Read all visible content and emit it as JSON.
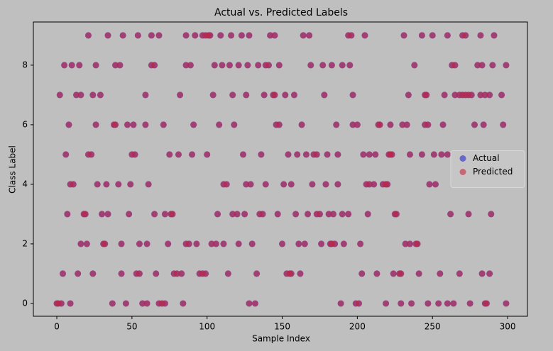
{
  "chart_data": {
    "type": "scatter",
    "title": "Actual vs. Predicted Labels",
    "x_label": "Sample Index",
    "y_label": "Class Label",
    "xlim": [
      -15.6,
      313.2
    ],
    "ylim": [
      -0.43,
      9.45
    ],
    "xticks": [
      0,
      50,
      100,
      150,
      200,
      250,
      300
    ],
    "yticks": [
      0,
      2,
      4,
      6,
      8
    ],
    "legend": "center right",
    "opacity": 0.6,
    "x": [
      21,
      34,
      44,
      54,
      63,
      68,
      86,
      92,
      97,
      99,
      101,
      102,
      109,
      116,
      123,
      128,
      142,
      145,
      164,
      168,
      194,
      196,
      205,
      231,
      243,
      250,
      260,
      270,
      272,
      282,
      291,
      5,
      10,
      15,
      26,
      39,
      42,
      63,
      65,
      86,
      89,
      105,
      110,
      115,
      121,
      127,
      134,
      139,
      141,
      148,
      169,
      177,
      183,
      190,
      195,
      238,
      263,
      265,
      280,
      283,
      290,
      299,
      2,
      13,
      16,
      24,
      29,
      59,
      82,
      104,
      117,
      126,
      138,
      144,
      145,
      152,
      158,
      178,
      197,
      234,
      245,
      246,
      258,
      265,
      268,
      270,
      272,
      274,
      276,
      282,
      285,
      288,
      296,
      8,
      26,
      38,
      39,
      47,
      51,
      59,
      71,
      91,
      108,
      118,
      146,
      148,
      163,
      186,
      197,
      200,
      214,
      215,
      222,
      230,
      233,
      245,
      247,
      257,
      278,
      284,
      297,
      6,
      21,
      23,
      50,
      52,
      75,
      81,
      90,
      100,
      124,
      136,
      154,
      160,
      166,
      171,
      173,
      180,
      187,
      204,
      208,
      212,
      221,
      222,
      223,
      235,
      243,
      251,
      256,
      260,
      267,
      294,
      9,
      11,
      27,
      33,
      41,
      49,
      61,
      111,
      113,
      126,
      129,
      139,
      151,
      156,
      170,
      179,
      187,
      206,
      208,
      211,
      217,
      219,
      220,
      248,
      252,
      277,
      278,
      291,
      292,
      296,
      7,
      18,
      19,
      30,
      34,
      48,
      65,
      72,
      76,
      77,
      107,
      117,
      120,
      125,
      135,
      137,
      147,
      159,
      167,
      173,
      175,
      181,
      184,
      190,
      194,
      207,
      225,
      226,
      262,
      274,
      289,
      16,
      20,
      31,
      32,
      43,
      55,
      60,
      74,
      86,
      88,
      93,
      103,
      106,
      111,
      121,
      130,
      150,
      161,
      165,
      176,
      182,
      183,
      185,
      191,
      202,
      232,
      235,
      239,
      240,
      4,
      14,
      24,
      43,
      53,
      55,
      66,
      78,
      80,
      83,
      95,
      97,
      99,
      114,
      133,
      153,
      155,
      156,
      162,
      203,
      213,
      224,
      228,
      229,
      241,
      255,
      268,
      283,
      288,
      0,
      1,
      3,
      9,
      37,
      46,
      57,
      60,
      68,
      70,
      72,
      84,
      128,
      132,
      189,
      199,
      201,
      219,
      229,
      236,
      247,
      254,
      260,
      264,
      275,
      285,
      286,
      299
    ],
    "series": [
      {
        "name": "Actual",
        "color": "#2a2acf",
        "values": [
          9,
          9,
          9,
          9,
          9,
          9,
          9,
          9,
          9,
          9,
          9,
          9,
          9,
          9,
          9,
          9,
          9,
          9,
          9,
          9,
          9,
          9,
          9,
          9,
          9,
          9,
          9,
          9,
          9,
          9,
          9,
          8,
          8,
          8,
          8,
          8,
          8,
          8,
          8,
          8,
          8,
          8,
          8,
          8,
          8,
          8,
          8,
          8,
          8,
          8,
          8,
          8,
          8,
          8,
          8,
          8,
          8,
          8,
          8,
          8,
          8,
          8,
          7,
          7,
          7,
          7,
          7,
          7,
          7,
          7,
          7,
          7,
          7,
          7,
          7,
          7,
          7,
          7,
          7,
          7,
          7,
          7,
          7,
          7,
          7,
          7,
          7,
          7,
          7,
          7,
          7,
          7,
          7,
          6,
          6,
          6,
          6,
          6,
          6,
          6,
          6,
          6,
          6,
          6,
          6,
          6,
          6,
          6,
          6,
          6,
          6,
          6,
          6,
          6,
          6,
          6,
          6,
          6,
          6,
          6,
          6,
          5,
          5,
          5,
          5,
          5,
          5,
          5,
          5,
          5,
          5,
          5,
          5,
          5,
          5,
          5,
          5,
          5,
          5,
          5,
          5,
          5,
          5,
          5,
          5,
          5,
          5,
          5,
          5,
          5,
          5,
          5,
          4,
          4,
          4,
          4,
          4,
          4,
          4,
          4,
          4,
          4,
          4,
          4,
          4,
          4,
          4,
          4,
          4,
          4,
          4,
          4,
          4,
          4,
          4,
          4,
          4,
          4,
          4,
          4,
          4,
          4,
          3,
          3,
          3,
          3,
          3,
          3,
          3,
          3,
          3,
          3,
          3,
          3,
          3,
          3,
          3,
          3,
          3,
          3,
          3,
          3,
          3,
          3,
          3,
          3,
          3,
          3,
          3,
          3,
          3,
          3,
          3,
          2,
          2,
          2,
          2,
          2,
          2,
          2,
          2,
          2,
          2,
          2,
          2,
          2,
          2,
          2,
          2,
          2,
          2,
          2,
          2,
          2,
          2,
          2,
          2,
          2,
          2,
          2,
          2,
          2,
          1,
          1,
          1,
          1,
          1,
          1,
          1,
          1,
          1,
          1,
          1,
          1,
          1,
          1,
          1,
          1,
          1,
          1,
          1,
          1,
          1,
          1,
          1,
          1,
          1,
          1,
          1,
          1,
          1,
          0,
          0,
          0,
          0,
          0,
          0,
          0,
          0,
          0,
          0,
          0,
          0,
          0,
          0,
          0,
          0,
          0,
          0,
          0,
          0,
          0,
          0,
          0,
          0,
          0,
          0,
          0,
          0
        ]
      },
      {
        "name": "Predicted",
        "color": "#c8283c",
        "values": [
          9,
          9,
          9,
          9,
          9,
          9,
          9,
          9,
          9,
          9,
          9,
          9,
          9,
          9,
          9,
          9,
          9,
          9,
          9,
          9,
          9,
          9,
          9,
          9,
          9,
          9,
          9,
          9,
          9,
          9,
          9,
          8,
          8,
          8,
          8,
          8,
          8,
          8,
          8,
          8,
          8,
          8,
          8,
          8,
          8,
          8,
          8,
          8,
          8,
          8,
          8,
          8,
          8,
          8,
          8,
          8,
          8,
          8,
          8,
          8,
          8,
          8,
          7,
          7,
          7,
          7,
          7,
          7,
          7,
          7,
          7,
          7,
          7,
          7,
          7,
          7,
          7,
          7,
          7,
          7,
          7,
          7,
          7,
          7,
          7,
          7,
          7,
          7,
          7,
          7,
          7,
          7,
          7,
          6,
          6,
          6,
          6,
          6,
          6,
          6,
          6,
          6,
          6,
          6,
          6,
          6,
          6,
          6,
          6,
          6,
          6,
          6,
          6,
          6,
          6,
          6,
          6,
          6,
          6,
          6,
          6,
          5,
          5,
          5,
          5,
          5,
          5,
          5,
          5,
          5,
          5,
          5,
          5,
          5,
          5,
          5,
          5,
          5,
          5,
          5,
          5,
          5,
          5,
          5,
          5,
          5,
          5,
          5,
          5,
          5,
          5,
          5,
          4,
          4,
          4,
          4,
          4,
          4,
          4,
          4,
          4,
          4,
          4,
          4,
          4,
          4,
          4,
          4,
          4,
          4,
          4,
          4,
          4,
          4,
          4,
          4,
          4,
          4,
          4,
          4,
          4,
          4,
          3,
          3,
          3,
          3,
          3,
          3,
          3,
          3,
          3,
          3,
          3,
          3,
          3,
          3,
          3,
          3,
          3,
          3,
          3,
          3,
          3,
          3,
          3,
          3,
          3,
          3,
          3,
          3,
          3,
          3,
          3,
          2,
          2,
          2,
          2,
          2,
          2,
          2,
          2,
          2,
          2,
          2,
          2,
          2,
          2,
          2,
          2,
          2,
          2,
          2,
          2,
          2,
          2,
          2,
          2,
          2,
          2,
          2,
          2,
          2,
          1,
          1,
          1,
          1,
          1,
          1,
          1,
          1,
          1,
          1,
          1,
          1,
          1,
          1,
          1,
          1,
          1,
          1,
          1,
          1,
          1,
          1,
          1,
          1,
          1,
          1,
          1,
          1,
          1,
          0,
          0,
          0,
          0,
          0,
          0,
          0,
          0,
          0,
          0,
          0,
          0,
          0,
          0,
          0,
          0,
          0,
          0,
          0,
          0,
          0,
          0,
          0,
          0,
          0,
          0,
          0,
          0
        ]
      }
    ]
  }
}
